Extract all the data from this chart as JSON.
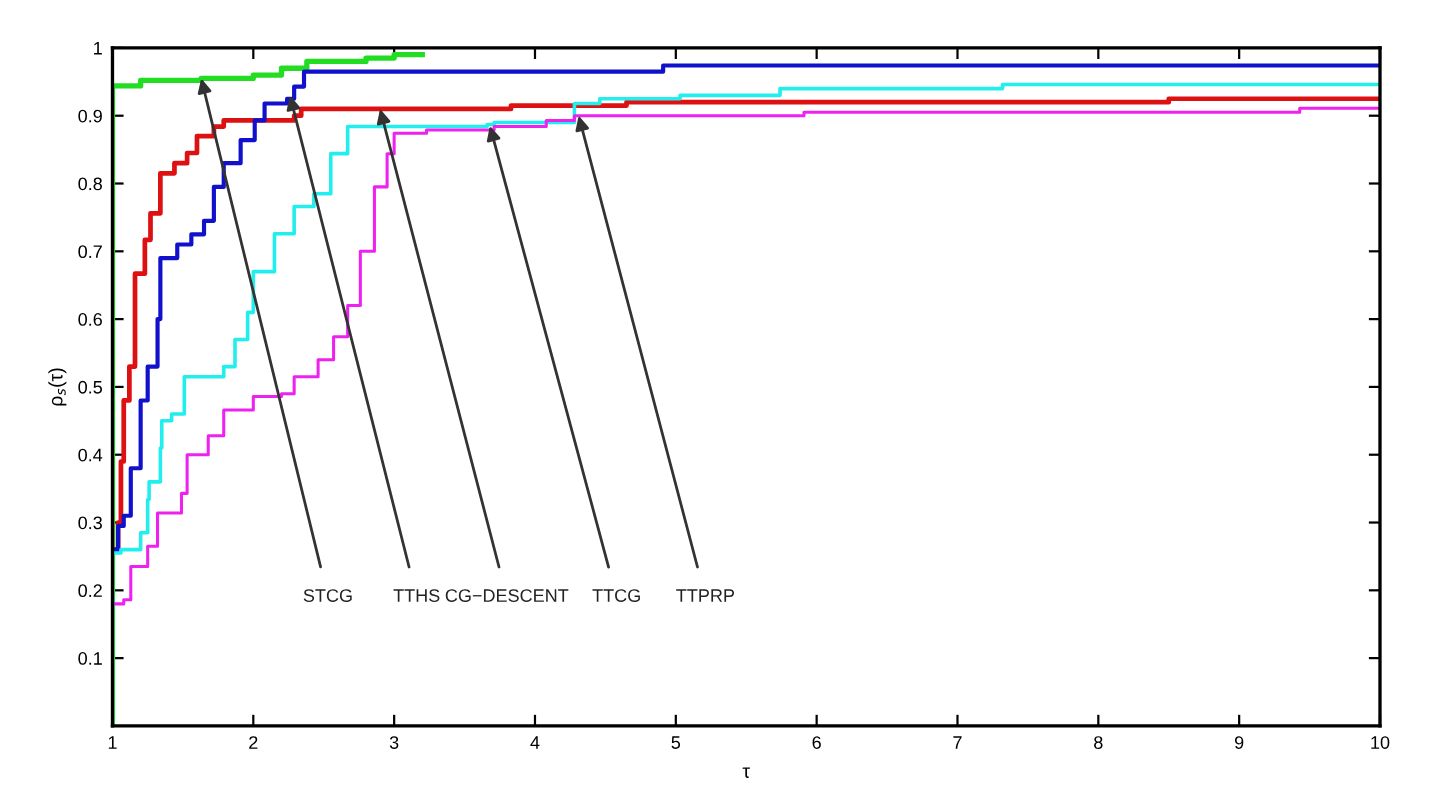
{
  "chart_data": {
    "type": "step",
    "xlabel": "τ",
    "ylabel": "ρ$_{s}$(τ)",
    "xlim": [
      1,
      10
    ],
    "ylim": [
      0,
      1
    ],
    "xticks": [
      1,
      2,
      3,
      4,
      5,
      6,
      7,
      8,
      9,
      10
    ],
    "yticks": [
      0.1,
      0.2,
      0.3,
      0.4,
      0.5,
      0.6,
      0.7,
      0.8,
      0.9,
      1
    ],
    "grid": false,
    "legend": false,
    "marker": "none",
    "line_style": "solid",
    "series": [
      {
        "color": "#22dd22",
        "x": [
          1,
          1,
          1.2,
          1.63,
          2.0,
          2.2,
          2.38,
          2.8,
          3.0,
          3.2
        ],
        "values": [
          0,
          0.944,
          0.952,
          0.955,
          0.96,
          0.97,
          0.98,
          0.985,
          0.99,
          0.99
        ]
      },
      {
        "color": "#dd1111",
        "x": [
          1,
          1.04,
          1.06,
          1.08,
          1.12,
          1.16,
          1.23,
          1.27,
          1.34,
          1.44,
          1.53,
          1.6,
          1.72,
          1.79,
          2.29,
          2.34,
          3.83,
          4.65,
          8.5,
          10
        ],
        "values": [
          0.26,
          0.3,
          0.39,
          0.48,
          0.53,
          0.667,
          0.717,
          0.756,
          0.815,
          0.83,
          0.845,
          0.87,
          0.884,
          0.893,
          0.9,
          0.91,
          0.915,
          0.92,
          0.925,
          0.925
        ]
      },
      {
        "color": "#1111cc",
        "x": [
          1,
          1.04,
          1.08,
          1.13,
          1.2,
          1.25,
          1.32,
          1.34,
          1.46,
          1.56,
          1.65,
          1.72,
          1.79,
          1.91,
          2.01,
          2.08,
          2.24,
          2.29,
          2.36,
          4.91,
          10
        ],
        "values": [
          0.26,
          0.295,
          0.31,
          0.38,
          0.48,
          0.53,
          0.6,
          0.69,
          0.71,
          0.725,
          0.745,
          0.795,
          0.83,
          0.864,
          0.893,
          0.918,
          0.925,
          0.943,
          0.965,
          0.974,
          0.974
        ]
      },
      {
        "color": "#22eeee",
        "x": [
          1,
          1,
          1.06,
          1.2,
          1.25,
          1.26,
          1.34,
          1.35,
          1.42,
          1.51,
          1.7,
          1.79,
          1.87,
          1.96,
          2.0,
          2.15,
          2.29,
          2.43,
          2.55,
          2.67,
          3.66,
          3.71,
          4.28,
          4.46,
          5.03,
          5.74,
          7.32,
          10
        ],
        "values": [
          0,
          0.255,
          0.26,
          0.285,
          0.334,
          0.36,
          0.41,
          0.45,
          0.46,
          0.515,
          0.515,
          0.53,
          0.57,
          0.61,
          0.67,
          0.726,
          0.766,
          0.785,
          0.844,
          0.884,
          0.887,
          0.89,
          0.918,
          0.925,
          0.93,
          0.94,
          0.946,
          0.946
        ]
      },
      {
        "color": "#ee22ee",
        "x": [
          1,
          1.08,
          1.13,
          1.25,
          1.32,
          1.49,
          1.53,
          1.68,
          1.79,
          2.0,
          2.2,
          2.29,
          2.46,
          2.57,
          2.67,
          2.76,
          2.86,
          2.95,
          3.0,
          3.23,
          3.71,
          4.08,
          4.28,
          5.91,
          9.43,
          10
        ],
        "values": [
          0.18,
          0.186,
          0.235,
          0.265,
          0.314,
          0.343,
          0.4,
          0.428,
          0.466,
          0.486,
          0.49,
          0.515,
          0.54,
          0.574,
          0.62,
          0.7,
          0.795,
          0.844,
          0.874,
          0.879,
          0.884,
          0.893,
          0.9,
          0.905,
          0.911,
          0.911
        ]
      }
    ],
    "annotations": [
      {
        "text": "STCG",
        "x": 1.63,
        "y": 0.955
      },
      {
        "text": "TTHS",
        "x": 2.26,
        "y": 0.93
      },
      {
        "text": "CG−DESCENT",
        "x": 2.9,
        "y": 0.91
      },
      {
        "text": "TTCG",
        "x": 3.68,
        "y": 0.885
      },
      {
        "text": "TTPRP",
        "x": 4.31,
        "y": 0.9
      }
    ]
  }
}
